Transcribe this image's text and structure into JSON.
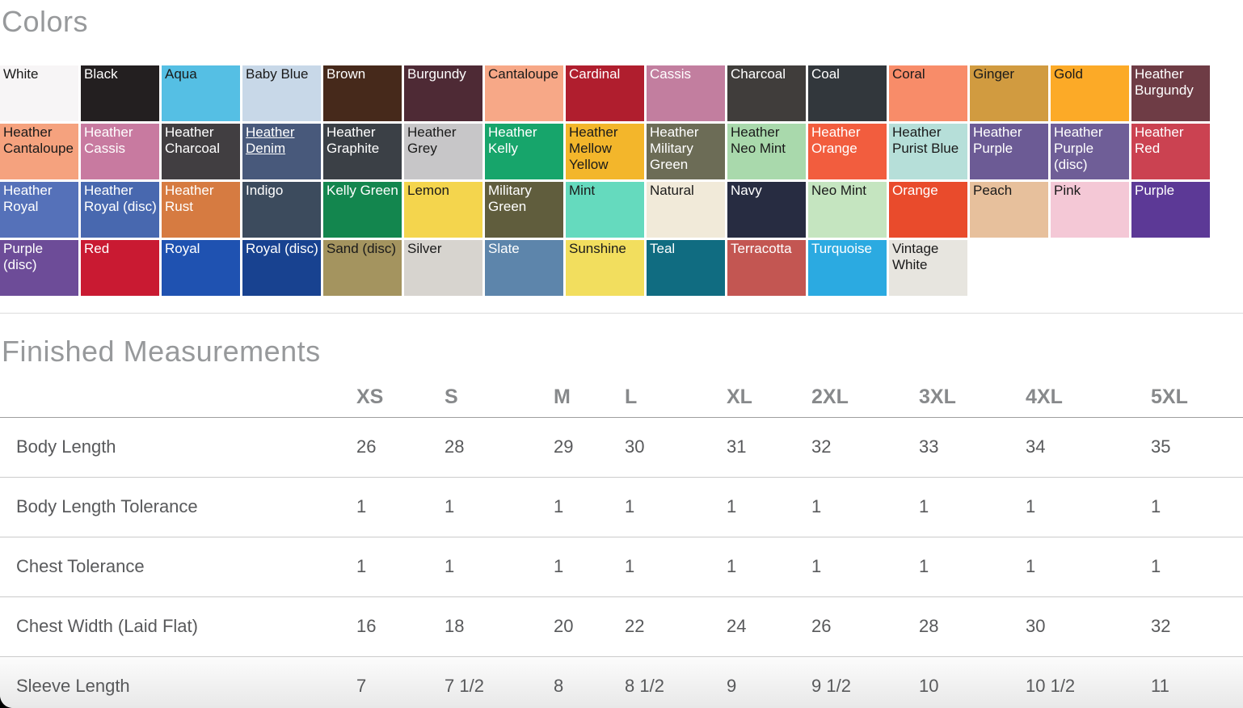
{
  "colors": {
    "heading": "Colors",
    "swatches": [
      {
        "name": "White",
        "hex": "#f7f5f6",
        "text": "#1a1a1a"
      },
      {
        "name": "Black",
        "hex": "#231f20",
        "text": "#ffffff"
      },
      {
        "name": "Aqua",
        "hex": "#55bfe4",
        "text": "#1a1a1a"
      },
      {
        "name": "Baby Blue",
        "hex": "#c8d8e8",
        "text": "#1a1a1a"
      },
      {
        "name": "Brown",
        "hex": "#46291b",
        "text": "#ffffff"
      },
      {
        "name": "Burgundy",
        "hex": "#4e2a35",
        "text": "#ffffff"
      },
      {
        "name": "Cantaloupe",
        "hex": "#f7a887",
        "text": "#1a1a1a"
      },
      {
        "name": "Cardinal",
        "hex": "#b01e2e",
        "text": "#ffffff"
      },
      {
        "name": "Cassis",
        "hex": "#c27e9f",
        "text": "#ffffff"
      },
      {
        "name": "Charcoal",
        "hex": "#403d3b",
        "text": "#ffffff"
      },
      {
        "name": "Coal",
        "hex": "#32373c",
        "text": "#ffffff"
      },
      {
        "name": "Coral",
        "hex": "#f88c69",
        "text": "#1a1a1a"
      },
      {
        "name": "Ginger",
        "hex": "#d19b40",
        "text": "#1a1a1a"
      },
      {
        "name": "Gold",
        "hex": "#fcaa27",
        "text": "#1a1a1a"
      },
      {
        "name": "Heather Burgundy",
        "hex": "#6e3c45",
        "text": "#ffffff"
      },
      {
        "name": "Heather Cantaloupe",
        "hex": "#f5a27e",
        "text": "#1a1a1a"
      },
      {
        "name": "Heather Cassis",
        "hex": "#c87aa0",
        "text": "#ffffff"
      },
      {
        "name": "Heather Charcoal",
        "hex": "#413e41",
        "text": "#ffffff"
      },
      {
        "name": "Heather Denim",
        "hex": "#48597b",
        "text": "#ffffff",
        "underline": true
      },
      {
        "name": "Heather Graphite",
        "hex": "#3b4046",
        "text": "#ffffff"
      },
      {
        "name": "Heather Grey",
        "hex": "#c7c6c8",
        "text": "#1a1a1a"
      },
      {
        "name": "Heather Kelly",
        "hex": "#17a56b",
        "text": "#ffffff"
      },
      {
        "name": "Heather Mellow Yellow",
        "hex": "#f3b62b",
        "text": "#1a1a1a"
      },
      {
        "name": "Heather Military Green",
        "hex": "#6c6c56",
        "text": "#ffffff"
      },
      {
        "name": "Heather Neo Mint",
        "hex": "#a9d9ac",
        "text": "#1a1a1a"
      },
      {
        "name": "Heather Orange",
        "hex": "#f25d3e",
        "text": "#ffffff"
      },
      {
        "name": "Heather Purist Blue",
        "hex": "#b6dfd9",
        "text": "#1a1a1a"
      },
      {
        "name": "Heather Purple",
        "hex": "#6c5b95",
        "text": "#ffffff"
      },
      {
        "name": "Heather Purple (disc)",
        "hex": "#6f5e97",
        "text": "#ffffff"
      },
      {
        "name": "Heather Red",
        "hex": "#cb4251",
        "text": "#ffffff"
      },
      {
        "name": "Heather Royal",
        "hex": "#5571b9",
        "text": "#ffffff"
      },
      {
        "name": "Heather Royal (disc)",
        "hex": "#4868af",
        "text": "#ffffff"
      },
      {
        "name": "Heather Rust",
        "hex": "#d67b41",
        "text": "#ffffff"
      },
      {
        "name": "Indigo",
        "hex": "#3c4b5d",
        "text": "#ffffff"
      },
      {
        "name": "Kelly Green",
        "hex": "#13864e",
        "text": "#ffffff"
      },
      {
        "name": "Lemon",
        "hex": "#f4d54d",
        "text": "#1a1a1a"
      },
      {
        "name": "Military Green",
        "hex": "#605d3d",
        "text": "#ffffff"
      },
      {
        "name": "Mint",
        "hex": "#65dabe",
        "text": "#1a1a1a"
      },
      {
        "name": "Natural",
        "hex": "#f1ead9",
        "text": "#1a1a1a"
      },
      {
        "name": "Navy",
        "hex": "#272c41",
        "text": "#ffffff"
      },
      {
        "name": "Neo Mint",
        "hex": "#c5e5c0",
        "text": "#1a1a1a"
      },
      {
        "name": "Orange",
        "hex": "#e94b2c",
        "text": "#ffffff"
      },
      {
        "name": "Peach",
        "hex": "#e7c09c",
        "text": "#1a1a1a"
      },
      {
        "name": "Pink",
        "hex": "#f4c8d6",
        "text": "#1a1a1a"
      },
      {
        "name": "Purple",
        "hex": "#5c3996",
        "text": "#ffffff"
      },
      {
        "name": "Purple (disc)",
        "hex": "#6d4c98",
        "text": "#ffffff"
      },
      {
        "name": "Red",
        "hex": "#c91a32",
        "text": "#ffffff"
      },
      {
        "name": "Royal",
        "hex": "#1f52b1",
        "text": "#ffffff"
      },
      {
        "name": "Royal (disc)",
        "hex": "#184290",
        "text": "#ffffff"
      },
      {
        "name": "Sand (disc)",
        "hex": "#a4945f",
        "text": "#1a1a1a"
      },
      {
        "name": "Silver",
        "hex": "#d7d4cf",
        "text": "#1a1a1a"
      },
      {
        "name": "Slate",
        "hex": "#5d85ab",
        "text": "#ffffff"
      },
      {
        "name": "Sunshine",
        "hex": "#f2de5e",
        "text": "#1a1a1a"
      },
      {
        "name": "Teal",
        "hex": "#106c81",
        "text": "#ffffff"
      },
      {
        "name": "Terracotta",
        "hex": "#c35652",
        "text": "#ffffff"
      },
      {
        "name": "Turquoise",
        "hex": "#2baae1",
        "text": "#ffffff"
      },
      {
        "name": "Vintage White",
        "hex": "#e7e5df",
        "text": "#1a1a1a"
      }
    ]
  },
  "measurements": {
    "heading": "Finished Measurements",
    "columns": [
      "XS",
      "S",
      "M",
      "L",
      "XL",
      "2XL",
      "3XL",
      "4XL",
      "5XL"
    ],
    "rows": [
      {
        "label": "Body Length",
        "values": [
          "26",
          "28",
          "29",
          "30",
          "31",
          "32",
          "33",
          "34",
          "35"
        ]
      },
      {
        "label": "Body Length Tolerance",
        "values": [
          "1",
          "1",
          "1",
          "1",
          "1",
          "1",
          "1",
          "1",
          "1"
        ]
      },
      {
        "label": "Chest Tolerance",
        "values": [
          "1",
          "1",
          "1",
          "1",
          "1",
          "1",
          "1",
          "1",
          "1"
        ]
      },
      {
        "label": "Chest Width (Laid Flat)",
        "values": [
          "16",
          "18",
          "20",
          "22",
          "24",
          "26",
          "28",
          "30",
          "32"
        ]
      },
      {
        "label": "Sleeve Length",
        "values": [
          "7",
          "7 1/2",
          "8",
          "8 1/2",
          "9",
          "9 1/2",
          "10",
          "10 1/2",
          "11"
        ]
      }
    ]
  }
}
